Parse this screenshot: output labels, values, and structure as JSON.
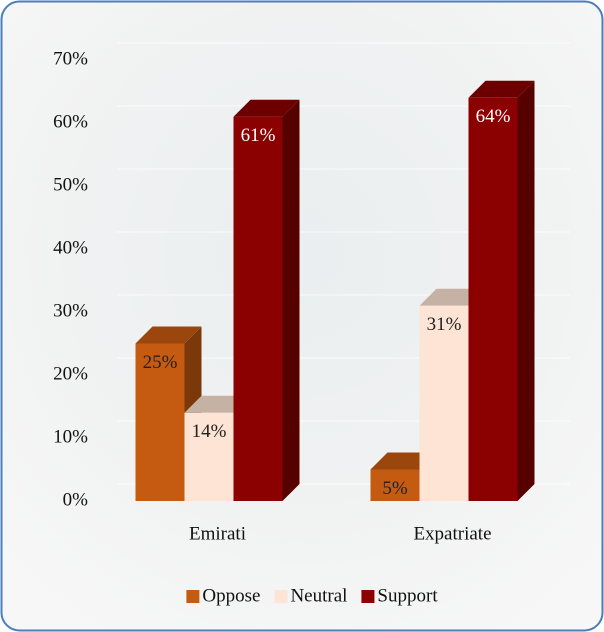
{
  "chart_data": {
    "type": "bar3d",
    "categories": [
      "Emirati",
      "Expatriate"
    ],
    "series": [
      {
        "name": "Oppose",
        "color": "#c55a11",
        "values": [
          25,
          5
        ],
        "value_labels": [
          "25%",
          "5%"
        ]
      },
      {
        "name": "Neutral",
        "color": "#fde4d4",
        "values": [
          14,
          31
        ],
        "value_labels": [
          "14%",
          "31%"
        ]
      },
      {
        "name": "Support",
        "color": "#8b0000",
        "values": [
          61,
          64
        ],
        "value_labels": [
          "61%",
          "64%"
        ]
      }
    ],
    "ylim": [
      0,
      70
    ],
    "yticks": [
      {
        "value": 0,
        "label": "0%"
      },
      {
        "value": 10,
        "label": "10%"
      },
      {
        "value": 20,
        "label": "20%"
      },
      {
        "value": 30,
        "label": "30%"
      },
      {
        "value": 40,
        "label": "40%"
      },
      {
        "value": 50,
        "label": "50%"
      },
      {
        "value": 60,
        "label": "60%"
      },
      {
        "value": 70,
        "label": "70%"
      }
    ],
    "grid": true,
    "legend": "bottom"
  }
}
